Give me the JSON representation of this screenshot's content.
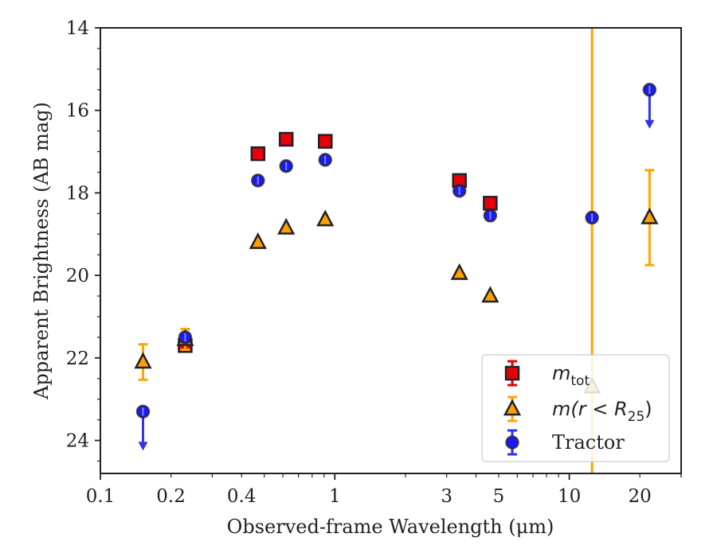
{
  "chart_data": {
    "type": "scatter",
    "xlabel": "Observed-frame Wavelength (μm)",
    "ylabel": "Apparent Brightness (AB mag)",
    "xscale": "log",
    "xlim": [
      0.1,
      30
    ],
    "ylim": [
      24.8,
      14
    ],
    "y_inverted": true,
    "grid": false,
    "legend_position": "bottom-right",
    "x_ticks": [
      {
        "value": 0.1,
        "label": "0.1"
      },
      {
        "value": 0.2,
        "label": "0.2"
      },
      {
        "value": 0.4,
        "label": "0.4"
      },
      {
        "value": 1,
        "label": "1"
      },
      {
        "value": 3,
        "label": "3"
      },
      {
        "value": 5,
        "label": "5"
      },
      {
        "value": 10,
        "label": "10"
      },
      {
        "value": 20,
        "label": "20"
      }
    ],
    "y_ticks": [
      {
        "value": 14,
        "label": "14"
      },
      {
        "value": 16,
        "label": "16"
      },
      {
        "value": 18,
        "label": "18"
      },
      {
        "value": 20,
        "label": "20"
      },
      {
        "value": 22,
        "label": "22"
      },
      {
        "value": 24,
        "label": "24"
      }
    ],
    "series": [
      {
        "name": "m_tot",
        "marker": "square",
        "color": "#e8000b",
        "edge": "#222222",
        "errcolor": "#e8000b",
        "points": [
          {
            "x": 0.23,
            "y": 21.7
          },
          {
            "x": 0.47,
            "y": 17.05
          },
          {
            "x": 0.62,
            "y": 16.7
          },
          {
            "x": 0.91,
            "y": 16.75
          },
          {
            "x": 3.4,
            "y": 17.7
          },
          {
            "x": 4.6,
            "y": 18.25
          }
        ]
      },
      {
        "name": "m(r < R25)",
        "marker": "triangle",
        "color": "#ff9f00",
        "edge": "#222222",
        "errcolor": "#ffa500",
        "points": [
          {
            "x": 0.152,
            "y": 22.1,
            "yerr": 0.43
          },
          {
            "x": 0.23,
            "y": 21.55,
            "yerr": 0.25
          },
          {
            "x": 0.47,
            "y": 19.2
          },
          {
            "x": 0.62,
            "y": 18.85
          },
          {
            "x": 0.91,
            "y": 18.65
          },
          {
            "x": 3.4,
            "y": 19.95
          },
          {
            "x": 4.6,
            "y": 20.5
          },
          {
            "x": 12.5,
            "y": 22.7,
            "yerr_full": true
          },
          {
            "x": 22,
            "y": 18.6,
            "yerr": 1.15
          }
        ]
      },
      {
        "name": "Tractor",
        "marker": "circle",
        "color": "#1a1aff",
        "edge": "#222222",
        "errcolor": "#3333ee",
        "points": [
          {
            "x": 0.152,
            "y": 23.3,
            "upper_limit": true
          },
          {
            "x": 0.23,
            "y": 21.5
          },
          {
            "x": 0.47,
            "y": 17.7
          },
          {
            "x": 0.62,
            "y": 17.35
          },
          {
            "x": 0.91,
            "y": 17.2
          },
          {
            "x": 3.4,
            "y": 17.95
          },
          {
            "x": 4.6,
            "y": 18.55
          },
          {
            "x": 12.5,
            "y": 18.6
          },
          {
            "x": 22,
            "y": 15.5,
            "upper_limit": true
          }
        ]
      }
    ],
    "legend": [
      {
        "label": "m",
        "subscript": "tot"
      },
      {
        "label": "m(r < R",
        "subscript": "25",
        "suffix": ")"
      },
      {
        "label": "Tractor"
      }
    ]
  }
}
